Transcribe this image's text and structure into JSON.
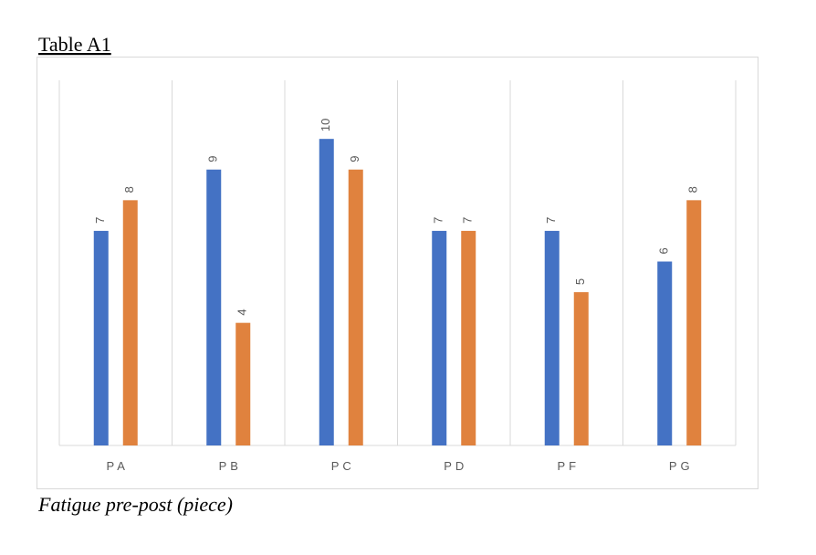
{
  "heading": "Table A1",
  "caption": "Fatigue pre-post (piece)",
  "chart_data": {
    "type": "bar",
    "categories": [
      "PA",
      "PB",
      "PC",
      "PD",
      "PF",
      "PG"
    ],
    "series": [
      {
        "color": "#4472c4",
        "values": [
          7,
          9,
          10,
          7,
          7,
          6
        ]
      },
      {
        "color": "#e0823e",
        "values": [
          8,
          4,
          9,
          7,
          5,
          8
        ]
      }
    ],
    "ylim": [
      0,
      12
    ]
  }
}
